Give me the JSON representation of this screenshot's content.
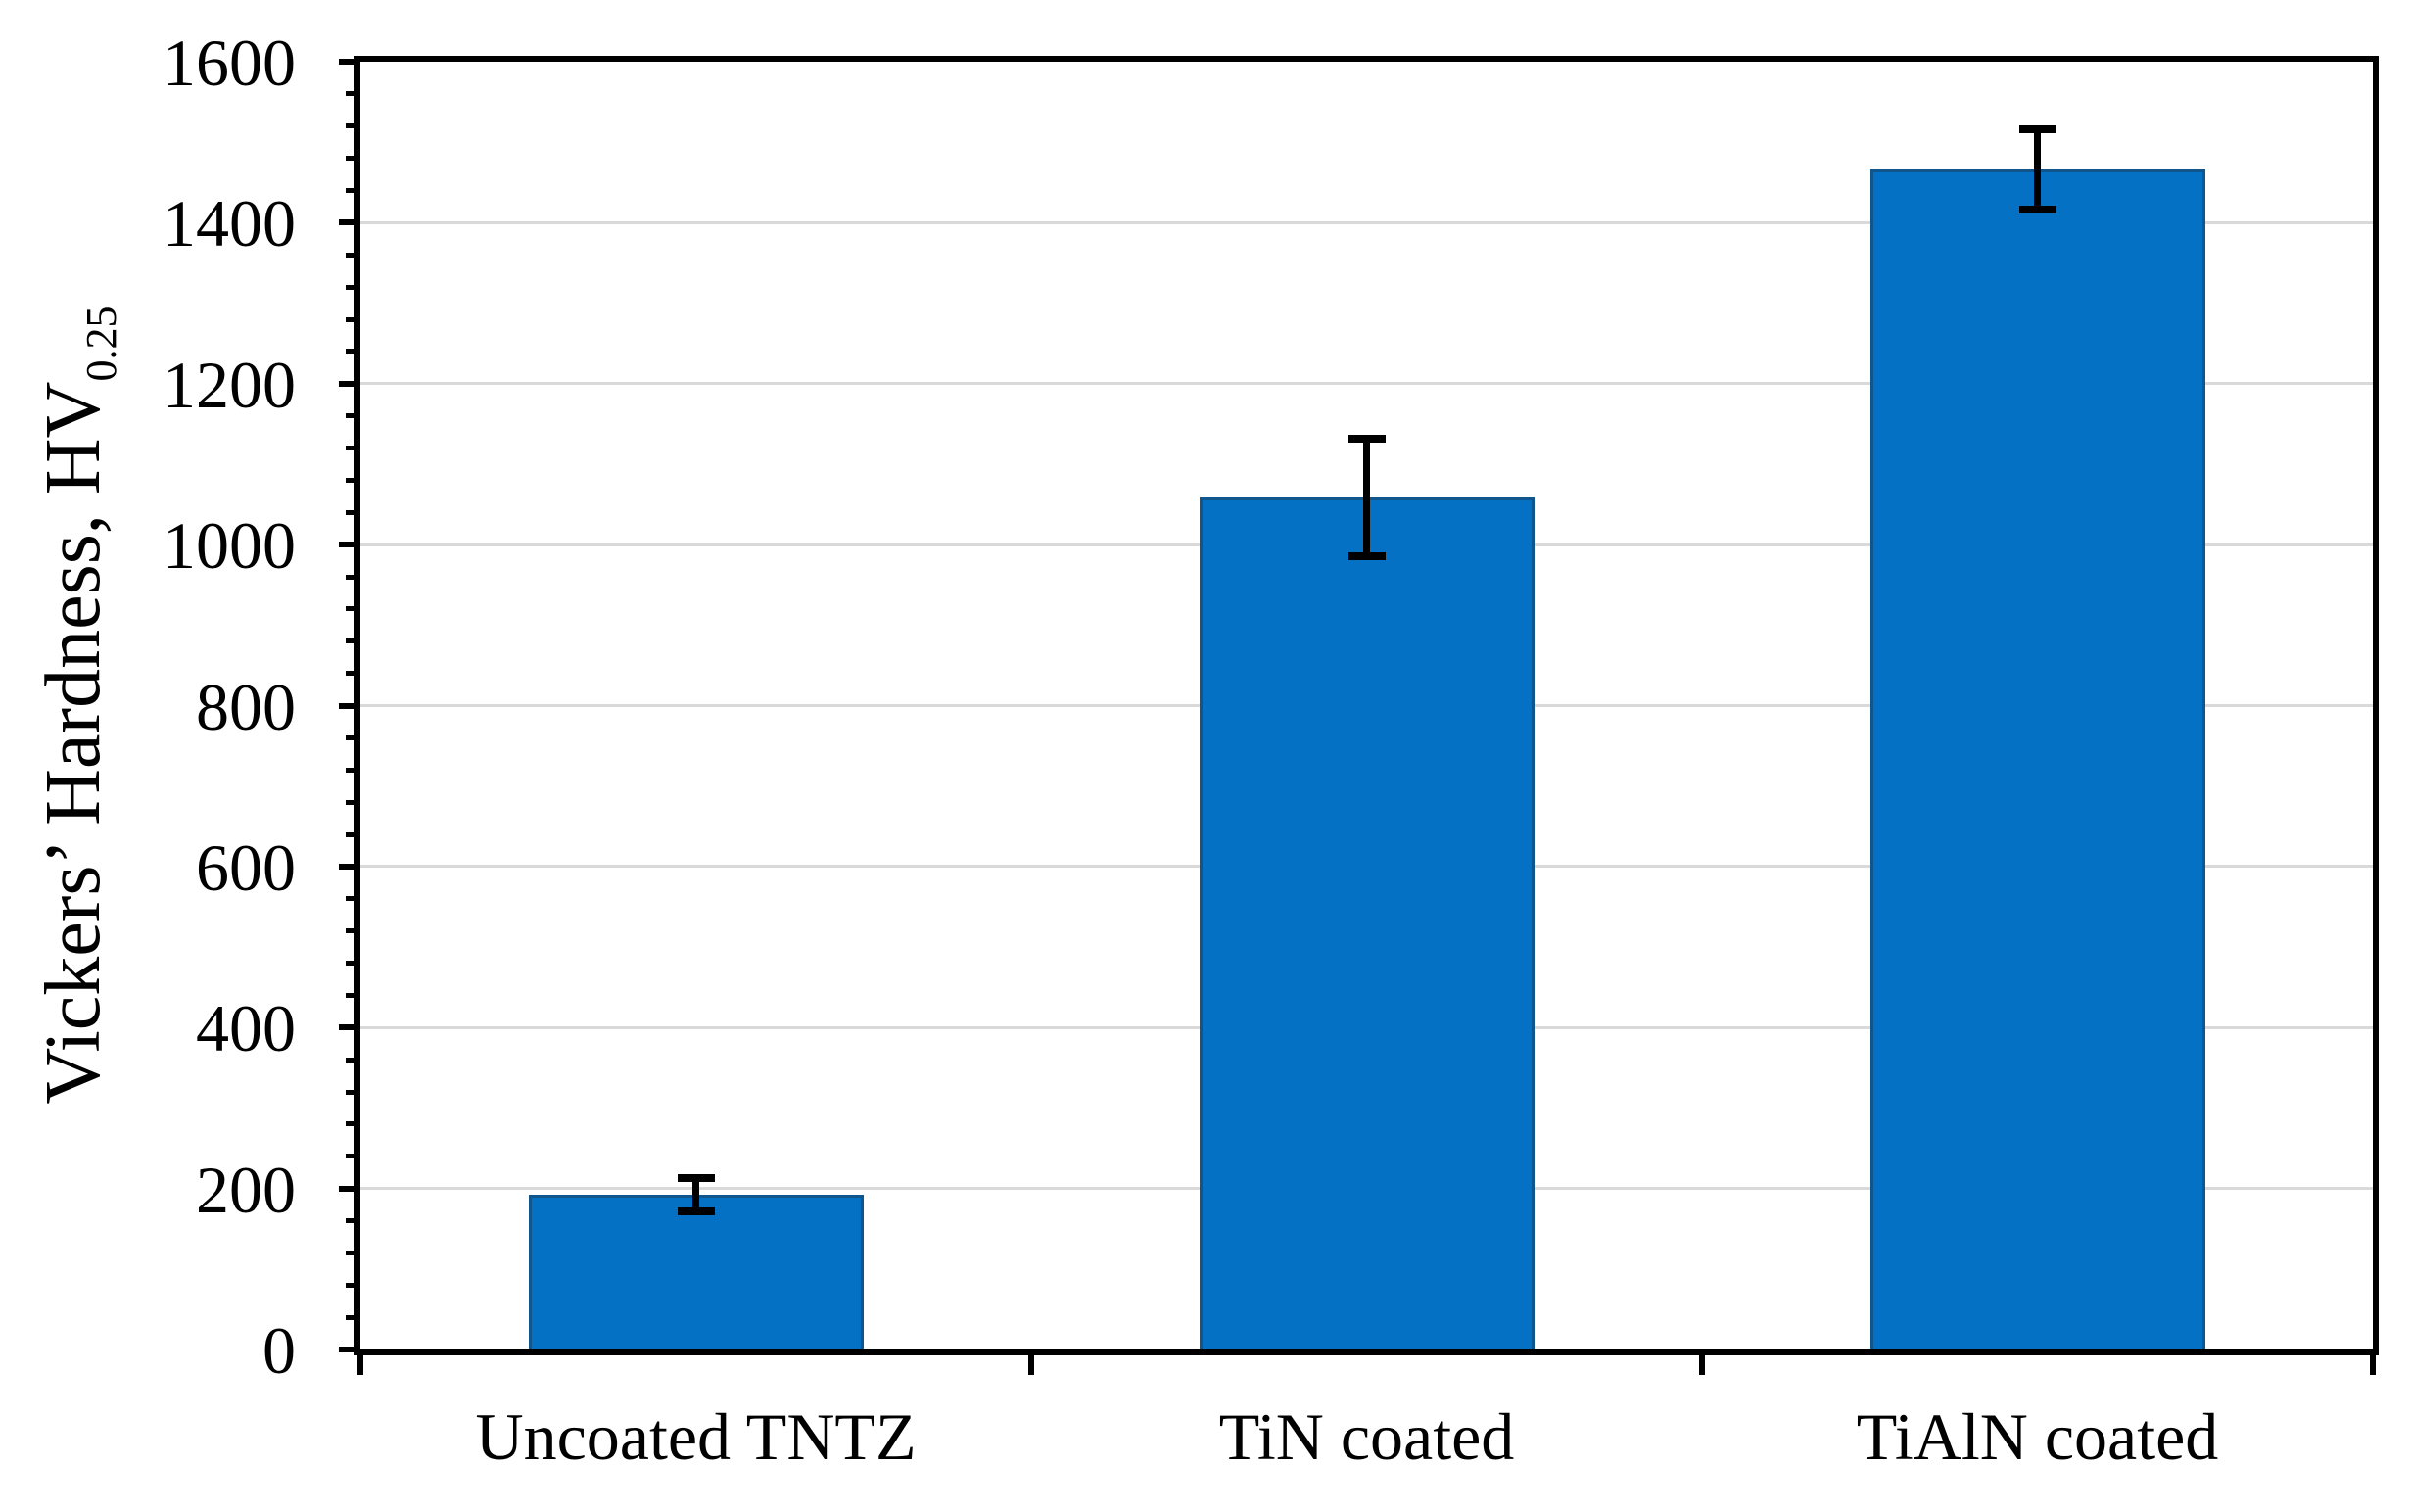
{
  "figure": {
    "kind": "scientific-bar-chart-figure",
    "background_color": "#ffffff"
  },
  "chart_data": {
    "type": "bar",
    "title": "",
    "categories": [
      "Uncoated TNTZ",
      "TiN coated",
      "TiAlN coated"
    ],
    "values": [
      192,
      1058,
      1466
    ],
    "error_bars": [
      21,
      73,
      50
    ],
    "ylabel": "Vickers’ Hardness, HV",
    "ylabel_subscript": "0.25",
    "xlabel": "",
    "ylim": [
      0,
      1600
    ],
    "yticks": [
      0,
      200,
      400,
      600,
      800,
      1000,
      1200,
      1400,
      1600
    ],
    "ytick_major_interval": 200,
    "ytick_minor_interval": 40,
    "grid": "horizontal-major-only",
    "legend": "none",
    "plot_frame": "full-box",
    "bar_fill_color": "#0571C4",
    "bar_edge_color": "#10568C",
    "gridline_color": "#D9D9D9",
    "axis_color": "#000000",
    "error_bar_color": "#000000",
    "text_color": "#000000"
  }
}
